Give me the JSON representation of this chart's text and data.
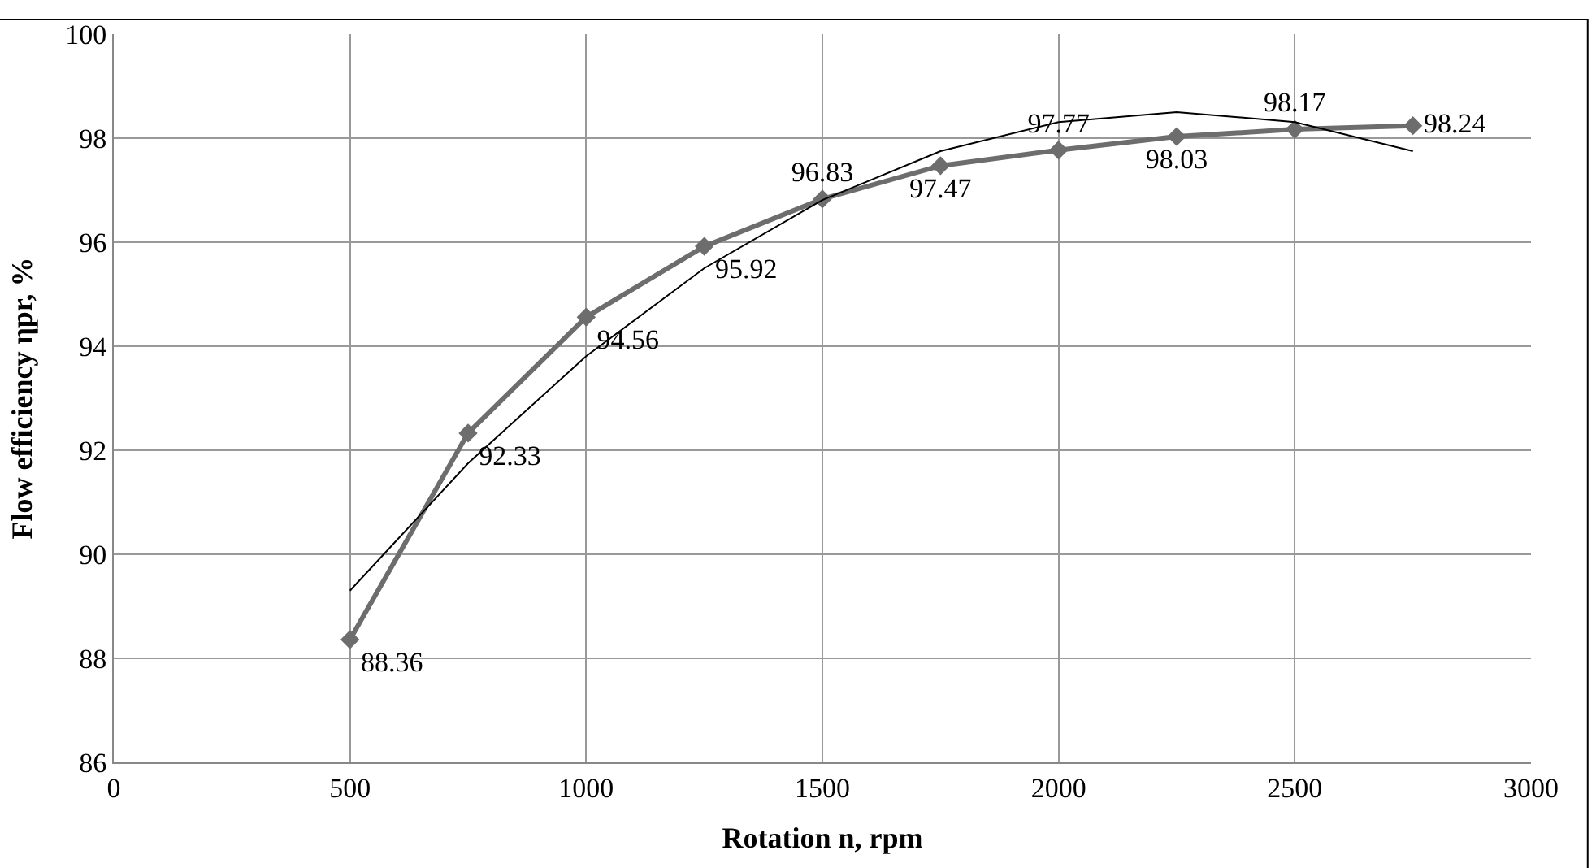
{
  "chart_data": {
    "type": "line",
    "xlabel": "Rotation n, rpm",
    "ylabel": "Flow efficiency ηpr, %",
    "xlim": [
      0,
      3000
    ],
    "xticks": [
      0,
      500,
      1000,
      1500,
      2000,
      2500,
      3000
    ],
    "ylim": [
      86,
      100
    ],
    "yticks": [
      86,
      88,
      90,
      92,
      94,
      96,
      98,
      100
    ],
    "grid": true,
    "series": [
      {
        "color": "#6d6d6d",
        "marker": "diamond",
        "data_labels": true,
        "x": [
          500,
          750,
          1000,
          1250,
          1500,
          1750,
          2000,
          2250,
          2500,
          2750
        ],
        "values": [
          88.36,
          92.33,
          94.56,
          95.92,
          96.83,
          97.47,
          97.77,
          98.03,
          98.17,
          98.24
        ]
      },
      {
        "color": "#000000",
        "marker": "none",
        "x": [
          500,
          750,
          1000,
          1250,
          1500,
          1750,
          2000,
          2250,
          2500,
          2750
        ],
        "values": [
          89.3,
          91.75,
          93.81,
          95.5,
          96.81,
          97.75,
          98.31,
          98.5,
          98.31,
          97.75
        ]
      }
    ]
  }
}
